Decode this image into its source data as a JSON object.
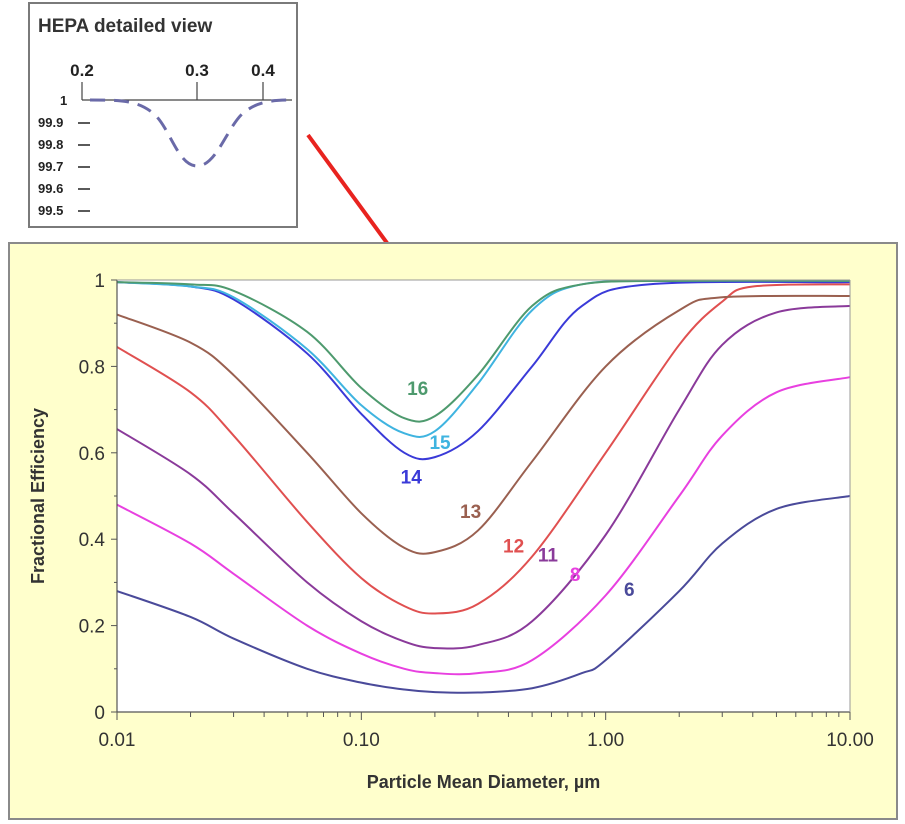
{
  "inset": {
    "title": "HEPA detailed view",
    "x_ticks": [
      "0.2",
      "0.3",
      "0.4"
    ],
    "y_ticks": [
      "1",
      "99.9",
      "99.8",
      "99.7",
      "99.6",
      "99.5"
    ],
    "curve_color": "#6a6aa8"
  },
  "arrow_color": "#e8231f",
  "chart_data": {
    "type": "line",
    "title": "",
    "xlabel": "Particle Mean Diameter, µm",
    "ylabel": "Fractional Efficiency",
    "xscale": "log",
    "xlim": [
      0.01,
      10
    ],
    "ylim": [
      0,
      1
    ],
    "x_tick_labels": [
      "0.01",
      "0.10",
      "1.00",
      "10.00"
    ],
    "y_tick_labels": [
      "0",
      "0.2",
      "0.4",
      "0.6",
      "0.8",
      "1"
    ],
    "grid": false,
    "series": [
      {
        "name": "16",
        "color": "#4e9a6e",
        "label_at": [
          0.17,
          0.75
        ],
        "points": [
          [
            0.01,
            0.995
          ],
          [
            0.02,
            0.99
          ],
          [
            0.03,
            0.975
          ],
          [
            0.06,
            0.88
          ],
          [
            0.1,
            0.75
          ],
          [
            0.15,
            0.68
          ],
          [
            0.2,
            0.685
          ],
          [
            0.3,
            0.78
          ],
          [
            0.5,
            0.94
          ],
          [
            0.8,
            0.99
          ],
          [
            2,
            0.998
          ],
          [
            10,
            0.998
          ]
        ]
      },
      {
        "name": "15",
        "color": "#3fb4e0",
        "label_at": [
          0.21,
          0.625
        ],
        "points": [
          [
            0.01,
            0.995
          ],
          [
            0.02,
            0.985
          ],
          [
            0.03,
            0.96
          ],
          [
            0.06,
            0.84
          ],
          [
            0.1,
            0.71
          ],
          [
            0.15,
            0.645
          ],
          [
            0.2,
            0.65
          ],
          [
            0.3,
            0.76
          ],
          [
            0.5,
            0.93
          ],
          [
            0.8,
            0.99
          ],
          [
            2,
            0.998
          ],
          [
            10,
            0.998
          ]
        ]
      },
      {
        "name": "14",
        "color": "#3a3ad8",
        "label_at": [
          0.16,
          0.545
        ],
        "points": [
          [
            0.01,
            0.995
          ],
          [
            0.02,
            0.985
          ],
          [
            0.03,
            0.955
          ],
          [
            0.06,
            0.83
          ],
          [
            0.1,
            0.69
          ],
          [
            0.15,
            0.6
          ],
          [
            0.2,
            0.59
          ],
          [
            0.3,
            0.65
          ],
          [
            0.5,
            0.8
          ],
          [
            0.8,
            0.94
          ],
          [
            1.5,
            0.99
          ],
          [
            10,
            0.995
          ]
        ]
      },
      {
        "name": "13",
        "color": "#9a6050",
        "label_at": [
          0.28,
          0.465
        ],
        "points": [
          [
            0.01,
            0.92
          ],
          [
            0.02,
            0.855
          ],
          [
            0.03,
            0.78
          ],
          [
            0.06,
            0.6
          ],
          [
            0.1,
            0.46
          ],
          [
            0.15,
            0.38
          ],
          [
            0.2,
            0.37
          ],
          [
            0.3,
            0.42
          ],
          [
            0.5,
            0.58
          ],
          [
            1,
            0.8
          ],
          [
            2,
            0.93
          ],
          [
            3,
            0.96
          ],
          [
            10,
            0.963
          ]
        ]
      },
      {
        "name": "12",
        "color": "#e05050",
        "label_at": [
          0.42,
          0.385
        ],
        "points": [
          [
            0.01,
            0.845
          ],
          [
            0.02,
            0.74
          ],
          [
            0.03,
            0.64
          ],
          [
            0.06,
            0.44
          ],
          [
            0.1,
            0.31
          ],
          [
            0.15,
            0.245
          ],
          [
            0.2,
            0.228
          ],
          [
            0.3,
            0.25
          ],
          [
            0.5,
            0.36
          ],
          [
            1,
            0.6
          ],
          [
            2,
            0.85
          ],
          [
            3,
            0.95
          ],
          [
            4,
            0.985
          ],
          [
            10,
            0.99
          ]
        ]
      },
      {
        "name": "11",
        "color": "#8a3a9a",
        "label_at": [
          0.58,
          0.365
        ],
        "points": [
          [
            0.01,
            0.655
          ],
          [
            0.02,
            0.55
          ],
          [
            0.03,
            0.46
          ],
          [
            0.06,
            0.3
          ],
          [
            0.1,
            0.21
          ],
          [
            0.15,
            0.163
          ],
          [
            0.2,
            0.148
          ],
          [
            0.3,
            0.155
          ],
          [
            0.5,
            0.21
          ],
          [
            1,
            0.41
          ],
          [
            2,
            0.7
          ],
          [
            3,
            0.85
          ],
          [
            5,
            0.925
          ],
          [
            10,
            0.94
          ]
        ]
      },
      {
        "name": "8",
        "color": "#e840e0",
        "label_at": [
          0.75,
          0.32
        ],
        "points": [
          [
            0.01,
            0.48
          ],
          [
            0.02,
            0.39
          ],
          [
            0.03,
            0.32
          ],
          [
            0.06,
            0.2
          ],
          [
            0.1,
            0.135
          ],
          [
            0.15,
            0.1
          ],
          [
            0.2,
            0.09
          ],
          [
            0.3,
            0.09
          ],
          [
            0.5,
            0.12
          ],
          [
            1,
            0.27
          ],
          [
            2,
            0.5
          ],
          [
            3,
            0.64
          ],
          [
            5,
            0.74
          ],
          [
            10,
            0.775
          ]
        ]
      },
      {
        "name": "6",
        "color": "#4a4a9a",
        "label_at": [
          1.25,
          0.285
        ],
        "points": [
          [
            0.01,
            0.28
          ],
          [
            0.02,
            0.22
          ],
          [
            0.03,
            0.17
          ],
          [
            0.06,
            0.1
          ],
          [
            0.1,
            0.068
          ],
          [
            0.15,
            0.052
          ],
          [
            0.2,
            0.046
          ],
          [
            0.3,
            0.045
          ],
          [
            0.5,
            0.055
          ],
          [
            0.8,
            0.09
          ],
          [
            1,
            0.12
          ],
          [
            2,
            0.28
          ],
          [
            3,
            0.39
          ],
          [
            5,
            0.47
          ],
          [
            10,
            0.5
          ]
        ]
      }
    ]
  }
}
